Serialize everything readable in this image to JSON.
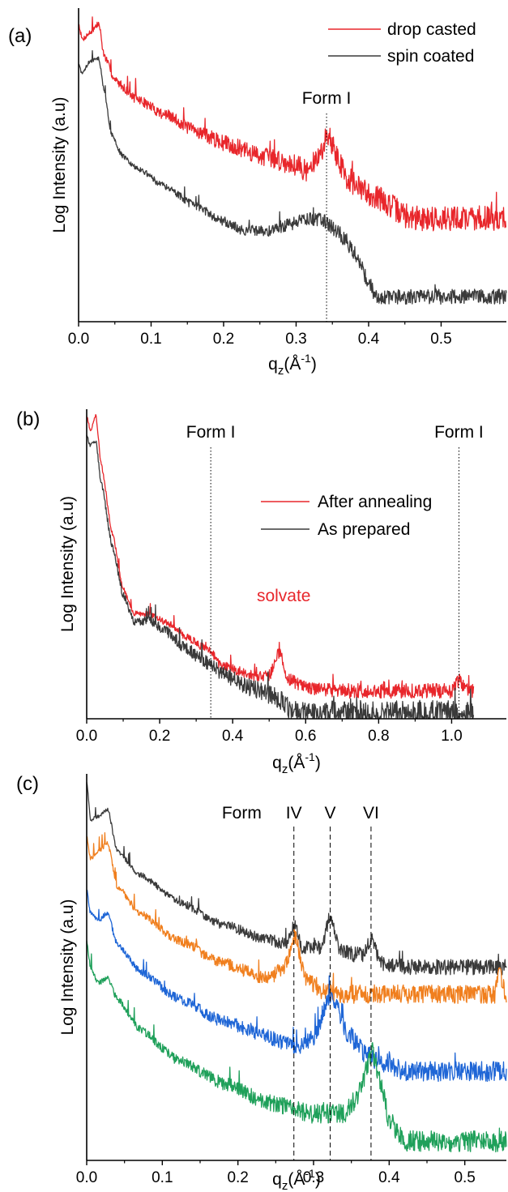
{
  "figure": {
    "panels": [
      {
        "id": "a",
        "label": "(a)"
      },
      {
        "id": "b",
        "label": "(b)"
      },
      {
        "id": "c",
        "label": "(c)"
      }
    ]
  },
  "chart_data": [
    {
      "type": "line",
      "label": "(a)",
      "xlabel": "q",
      "xlabel_sub": "z",
      "xlabel_unit": "(Å",
      "xlabel_sup": "-1",
      "xlabel_close": ")",
      "ylabel": "Log Intensity (a.u)",
      "xlim": [
        0.0,
        0.59
      ],
      "ylog": true,
      "xticks": [
        0.0,
        0.1,
        0.2,
        0.3,
        0.4,
        0.5
      ],
      "xtick_labels": [
        "0.0",
        "0.1",
        "0.2",
        "0.3",
        "0.4",
        "0.5"
      ],
      "grid": false,
      "legend": "top-right",
      "series": [
        {
          "name": "drop casted",
          "color": "#e8262b",
          "points": [
            [
              0.0,
              0.95
            ],
            [
              0.005,
              0.9
            ],
            [
              0.015,
              0.92
            ],
            [
              0.028,
              0.95
            ],
            [
              0.035,
              0.85
            ],
            [
              0.05,
              0.77
            ],
            [
              0.08,
              0.71
            ],
            [
              0.12,
              0.66
            ],
            [
              0.16,
              0.61
            ],
            [
              0.2,
              0.57
            ],
            [
              0.25,
              0.53
            ],
            [
              0.3,
              0.5
            ],
            [
              0.315,
              0.48
            ],
            [
              0.33,
              0.52
            ],
            [
              0.345,
              0.6
            ],
            [
              0.355,
              0.53
            ],
            [
              0.37,
              0.46
            ],
            [
              0.39,
              0.42
            ],
            [
              0.41,
              0.4
            ],
            [
              0.43,
              0.37
            ],
            [
              0.45,
              0.34
            ],
            [
              0.46,
              0.33
            ],
            [
              0.59,
              0.33
            ]
          ],
          "noise": 0.02
        },
        {
          "name": "spin coated",
          "color": "#3a3a3a",
          "points": [
            [
              0.0,
              0.82
            ],
            [
              0.005,
              0.79
            ],
            [
              0.015,
              0.83
            ],
            [
              0.028,
              0.84
            ],
            [
              0.035,
              0.74
            ],
            [
              0.045,
              0.6
            ],
            [
              0.06,
              0.53
            ],
            [
              0.08,
              0.49
            ],
            [
              0.12,
              0.43
            ],
            [
              0.16,
              0.37
            ],
            [
              0.2,
              0.32
            ],
            [
              0.23,
              0.29
            ],
            [
              0.26,
              0.29
            ],
            [
              0.29,
              0.31
            ],
            [
              0.32,
              0.33
            ],
            [
              0.34,
              0.32
            ],
            [
              0.36,
              0.28
            ],
            [
              0.38,
              0.22
            ],
            [
              0.4,
              0.13
            ],
            [
              0.41,
              0.08
            ],
            [
              0.59,
              0.08
            ]
          ],
          "noise": 0.012
        }
      ],
      "annotations": [
        {
          "text": "Form I",
          "x": 0.342,
          "line": "dotted"
        }
      ]
    },
    {
      "type": "line",
      "label": "(b)",
      "xlabel": "q",
      "xlabel_sub": "z",
      "xlabel_unit": "(Å",
      "xlabel_sup": "-1",
      "xlabel_close": ")",
      "ylabel": "Log Intensity (a.u)",
      "xlim": [
        0.0,
        1.15
      ],
      "ylog": true,
      "xticks": [
        0.0,
        0.2,
        0.4,
        0.6,
        0.8,
        1.0
      ],
      "xtick_labels": [
        "0.0",
        "0.2",
        "0.4",
        "0.6",
        "0.8",
        "1.0"
      ],
      "grid": false,
      "legend": "center-right",
      "series": [
        {
          "name": "After annealing",
          "color": "#e8262b",
          "points": [
            [
              0.0,
              0.98
            ],
            [
              0.01,
              0.93
            ],
            [
              0.025,
              0.98
            ],
            [
              0.04,
              0.82
            ],
            [
              0.07,
              0.6
            ],
            [
              0.1,
              0.42
            ],
            [
              0.13,
              0.34
            ],
            [
              0.17,
              0.34
            ],
            [
              0.22,
              0.31
            ],
            [
              0.28,
              0.26
            ],
            [
              0.32,
              0.23
            ],
            [
              0.34,
              0.22
            ],
            [
              0.36,
              0.18
            ],
            [
              0.4,
              0.16
            ],
            [
              0.45,
              0.14
            ],
            [
              0.5,
              0.14
            ],
            [
              0.53,
              0.22
            ],
            [
              0.55,
              0.13
            ],
            [
              0.6,
              0.1
            ],
            [
              0.7,
              0.09
            ],
            [
              1.0,
              0.09
            ],
            [
              1.02,
              0.12
            ],
            [
              1.04,
              0.09
            ],
            [
              1.06,
              0.09
            ]
          ],
          "noise": 0.012
        },
        {
          "name": "As prepared",
          "color": "#3a3a3a",
          "points": [
            [
              0.0,
              0.92
            ],
            [
              0.01,
              0.88
            ],
            [
              0.025,
              0.9
            ],
            [
              0.04,
              0.76
            ],
            [
              0.07,
              0.56
            ],
            [
              0.1,
              0.4
            ],
            [
              0.13,
              0.31
            ],
            [
              0.17,
              0.32
            ],
            [
              0.22,
              0.28
            ],
            [
              0.28,
              0.22
            ],
            [
              0.33,
              0.18
            ],
            [
              0.38,
              0.14
            ],
            [
              0.45,
              0.1
            ],
            [
              0.52,
              0.07
            ],
            [
              0.56,
              0.03
            ],
            [
              0.6,
              0.02
            ],
            [
              1.06,
              0.02
            ]
          ],
          "noise": 0.02
        }
      ],
      "annotations": [
        {
          "text": "Form I",
          "x": 0.34,
          "line": "dotted"
        },
        {
          "text": "Form I",
          "x": 1.02,
          "line": "dotted"
        },
        {
          "text": "solvate",
          "x": 0.54,
          "color": "#e8262b"
        }
      ]
    },
    {
      "type": "line",
      "label": "(c)",
      "xlabel": "q",
      "xlabel_sub": "z",
      "xlabel_unit": "(Å",
      "xlabel_sup": "-1",
      "xlabel_close": ")",
      "ylabel": "Log Intensity (a.u)",
      "xlim": [
        0.0,
        0.555
      ],
      "ylog": true,
      "xticks": [
        0.0,
        0.1,
        0.2,
        0.3,
        0.4,
        0.5
      ],
      "xtick_labels": [
        "0.0",
        "0.1",
        "0.2",
        "0.3",
        "0.4",
        "0.5"
      ],
      "grid": false,
      "legend": "none",
      "series": [
        {
          "name": "",
          "color": "#3a3a3a",
          "points": [
            [
              0.0,
              0.98
            ],
            [
              0.005,
              0.88
            ],
            [
              0.015,
              0.89
            ],
            [
              0.028,
              0.91
            ],
            [
              0.04,
              0.8
            ],
            [
              0.07,
              0.74
            ],
            [
              0.12,
              0.67
            ],
            [
              0.18,
              0.61
            ],
            [
              0.24,
              0.57
            ],
            [
              0.265,
              0.56
            ],
            [
              0.275,
              0.61
            ],
            [
              0.285,
              0.55
            ],
            [
              0.31,
              0.55
            ],
            [
              0.322,
              0.63
            ],
            [
              0.335,
              0.54
            ],
            [
              0.365,
              0.53
            ],
            [
              0.376,
              0.57
            ],
            [
              0.39,
              0.51
            ],
            [
              0.42,
              0.5
            ],
            [
              0.555,
              0.5
            ]
          ],
          "noise": 0.01
        },
        {
          "name": "",
          "color": "#f07f1e",
          "points": [
            [
              0.0,
              0.84
            ],
            [
              0.005,
              0.78
            ],
            [
              0.015,
              0.8
            ],
            [
              0.028,
              0.82
            ],
            [
              0.04,
              0.71
            ],
            [
              0.07,
              0.64
            ],
            [
              0.12,
              0.57
            ],
            [
              0.18,
              0.51
            ],
            [
              0.24,
              0.47
            ],
            [
              0.262,
              0.5
            ],
            [
              0.275,
              0.58
            ],
            [
              0.29,
              0.47
            ],
            [
              0.31,
              0.44
            ],
            [
              0.33,
              0.43
            ],
            [
              0.4,
              0.43
            ],
            [
              0.54,
              0.43
            ],
            [
              0.545,
              0.49
            ],
            [
              0.555,
              0.43
            ]
          ],
          "noise": 0.012
        },
        {
          "name": "",
          "color": "#1f66d6",
          "points": [
            [
              0.0,
              0.7
            ],
            [
              0.005,
              0.64
            ],
            [
              0.015,
              0.62
            ],
            [
              0.028,
              0.64
            ],
            [
              0.04,
              0.56
            ],
            [
              0.07,
              0.49
            ],
            [
              0.12,
              0.42
            ],
            [
              0.18,
              0.36
            ],
            [
              0.24,
              0.32
            ],
            [
              0.28,
              0.29
            ],
            [
              0.3,
              0.32
            ],
            [
              0.322,
              0.43
            ],
            [
              0.345,
              0.33
            ],
            [
              0.37,
              0.27
            ],
            [
              0.4,
              0.25
            ],
            [
              0.42,
              0.23
            ],
            [
              0.555,
              0.23
            ]
          ],
          "noise": 0.013
        },
        {
          "name": "",
          "color": "#1fa05a",
          "points": [
            [
              0.0,
              0.57
            ],
            [
              0.005,
              0.5
            ],
            [
              0.015,
              0.46
            ],
            [
              0.028,
              0.47
            ],
            [
              0.04,
              0.42
            ],
            [
              0.07,
              0.34
            ],
            [
              0.12,
              0.26
            ],
            [
              0.18,
              0.2
            ],
            [
              0.24,
              0.15
            ],
            [
              0.3,
              0.12
            ],
            [
              0.34,
              0.12
            ],
            [
              0.36,
              0.17
            ],
            [
              0.378,
              0.28
            ],
            [
              0.39,
              0.2
            ],
            [
              0.4,
              0.1
            ],
            [
              0.42,
              0.05
            ],
            [
              0.555,
              0.05
            ]
          ],
          "noise": 0.014
        }
      ],
      "annotations": [
        {
          "text": "Form",
          "x": 0.205,
          "line": "none"
        },
        {
          "text": "IV",
          "x": 0.274,
          "line": "dashed"
        },
        {
          "text": "V",
          "x": 0.322,
          "line": "dashed"
        },
        {
          "text": "VI",
          "x": 0.376,
          "line": "dashed"
        }
      ]
    }
  ]
}
